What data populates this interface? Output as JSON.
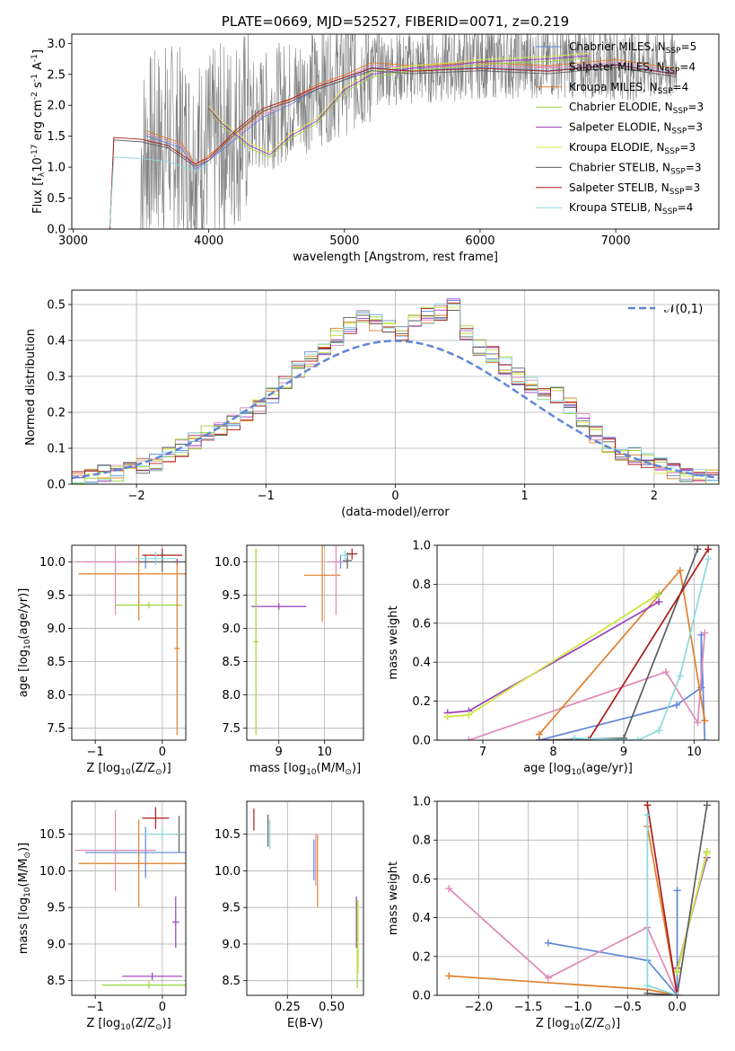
{
  "chart_data": [
    {
      "id": "spectrum",
      "type": "line",
      "title": "PLATE=0669, MJD=52527, FIBERID=0071, z=0.219",
      "xlabel": "wavelength [Angstrom, rest frame]",
      "ylabel": "Flux [f$_\\lambda$10$^{-17}$ erg cm$^{-2}$ s$^{-1}$ A$^{-1}$]",
      "xlim": [
        2990,
        7760
      ],
      "ylim": [
        0,
        3.15
      ],
      "xticks": [
        3000,
        4000,
        5000,
        6000,
        7000
      ],
      "yticks": [
        0.0,
        0.5,
        1.0,
        1.5,
        2.0,
        2.5,
        3.0
      ],
      "grid": false,
      "legend": "upper right",
      "legend_entries": [
        "Chabrier MILES, N$_{SSP}$=5",
        "Salpeter MILES, N$_{SSP}$=4",
        "Kroupa MILES, N$_{SSP}$=4",
        "Chabrier ELODIE, N$_{SSP}$=3",
        "Salpeter ELODIE, N$_{SSP}$=3",
        "Kroupa ELODIE, N$_{SSP}$=3",
        "Chabrier STELIB, N$_{SSP}$=3",
        "Salpeter STELIB, N$_{SSP}$=3",
        "Kroupa STELIB, N$_{SSP}$=4"
      ],
      "series": [
        {
          "model": "observed data",
          "color": "#808080",
          "x": [
            3270,
            3520,
            3700,
            3900,
            4000,
            4200,
            4500,
            4800,
            5000,
            5200,
            5500,
            5800,
            6000,
            6300,
            6600,
            6900,
            7200,
            7450
          ],
          "y": [
            0.0,
            1.2,
            1.5,
            1.2,
            1.3,
            1.6,
            2.0,
            2.3,
            2.5,
            2.6,
            2.6,
            2.65,
            2.7,
            2.7,
            2.7,
            2.7,
            2.65,
            2.6
          ]
        },
        {
          "model": "MILES",
          "x": [
            3540,
            3600,
            3800,
            3900,
            4000,
            4200,
            4400,
            4600,
            4800,
            5000,
            5200,
            5500,
            6000,
            6500,
            7000,
            7450
          ],
          "y": [
            1.55,
            1.5,
            1.35,
            1.0,
            1.15,
            1.5,
            1.85,
            2.05,
            2.3,
            2.45,
            2.65,
            2.6,
            2.65,
            2.6,
            2.7,
            2.55
          ]
        },
        {
          "model": "ELODIE",
          "x": [
            4000,
            4100,
            4300,
            4450,
            4600,
            4800,
            5000,
            5200,
            5500,
            5800,
            6000,
            6500,
            6800
          ],
          "y": [
            1.95,
            1.7,
            1.35,
            1.2,
            1.5,
            1.75,
            2.25,
            2.5,
            2.6,
            2.65,
            2.7,
            2.75,
            2.8
          ]
        },
        {
          "model": "STELIB",
          "x": [
            3270,
            3300,
            3500,
            3700,
            3900,
            4000,
            4200,
            4400,
            4600,
            4800,
            5000,
            5200,
            5500,
            6000,
            6500,
            7000,
            7450
          ],
          "y": [
            0.0,
            1.48,
            1.45,
            1.35,
            1.05,
            1.15,
            1.6,
            1.95,
            2.1,
            2.3,
            2.45,
            2.6,
            2.55,
            2.6,
            2.55,
            2.65,
            2.5
          ]
        },
        {
          "model": "STELIB Kroupa",
          "x": [
            3270,
            3300,
            3500,
            3700,
            3900,
            4000
          ],
          "y": [
            0.0,
            1.12,
            1.1,
            1.05,
            0.9,
            1.0
          ]
        }
      ]
    },
    {
      "id": "residuals",
      "type": "bar",
      "xlabel": "(data-model)/error",
      "ylabel": "Normed distribution",
      "xlim": [
        -2.5,
        2.5
      ],
      "ylim": [
        0,
        0.54
      ],
      "xticks": [
        -2,
        -1,
        0,
        1,
        2
      ],
      "yticks": [
        0.0,
        0.1,
        0.2,
        0.3,
        0.4,
        0.5
      ],
      "grid": true,
      "legend": "upper right",
      "legend_entries": [
        "$\\mathcal{N}(0,1)$"
      ],
      "bin_width": 0.1,
      "bin_start": -2.5,
      "values": [
        0.01,
        0.02,
        0.03,
        0.03,
        0.04,
        0.05,
        0.06,
        0.08,
        0.1,
        0.12,
        0.14,
        0.15,
        0.17,
        0.19,
        0.22,
        0.25,
        0.28,
        0.32,
        0.35,
        0.38,
        0.41,
        0.44,
        0.46,
        0.45,
        0.44,
        0.42,
        0.45,
        0.47,
        0.48,
        0.5,
        0.42,
        0.38,
        0.36,
        0.33,
        0.3,
        0.28,
        0.26,
        0.25,
        0.22,
        0.18,
        0.14,
        0.11,
        0.09,
        0.08,
        0.07,
        0.05,
        0.04,
        0.03,
        0.02,
        0.02
      ],
      "gaussian": {
        "mean": 0,
        "sigma": 1,
        "color": "#5f87d6"
      }
    },
    {
      "id": "age-vs-Z",
      "type": "scatter",
      "xlabel": "Z [log$_{10}$($Z/Z_\\odot$)]",
      "ylabel": "age  [log$_{10}$($age/yr$)]",
      "xlim": [
        -1.35,
        0.35
      ],
      "ylim": [
        7.32,
        10.25
      ],
      "xticks": [
        -1,
        0
      ],
      "yticks": [
        7.5,
        8.0,
        8.5,
        9.0,
        9.5,
        10.0
      ],
      "grid": true,
      "points": [
        {
          "x": -0.25,
          "y": 10.0,
          "xerr": 0.9,
          "yerr": 0.1,
          "color": "#5f87d6"
        },
        {
          "x": 0.22,
          "y": 10.0,
          "xerr": 0.05,
          "yerr": 0.05,
          "color": "#9a3dbd"
        },
        {
          "x": -0.35,
          "y": 9.82,
          "xerr": 0.9,
          "yerr": 0.7,
          "color": "#e07f2a"
        },
        {
          "x": -0.7,
          "y": 10.0,
          "xerr": 0.6,
          "yerr": 0.8,
          "color": "#e089b9"
        },
        {
          "x": 0.0,
          "y": 10.1,
          "xerr": 0.3,
          "yerr": 0.1,
          "color": "#b01a1a"
        },
        {
          "x": -0.2,
          "y": 9.35,
          "xerr": 0.5,
          "yerr": 0.05,
          "color": "#9ad43a"
        },
        {
          "x": 0.22,
          "y": 8.7,
          "xerr": 0.04,
          "yerr": 1.3,
          "color": "#e07f2a"
        },
        {
          "x": 0.0,
          "y": 10.0,
          "xerr": 0.35,
          "yerr": 0.15,
          "color": "#5e5e5e"
        },
        {
          "x": -0.1,
          "y": 10.05,
          "xerr": 0.3,
          "yerr": 0.1,
          "color": "#8bd9de"
        }
      ]
    },
    {
      "id": "age-vs-mass",
      "type": "scatter",
      "xlabel": "mass [log$_{10}$($M/M_\\odot$)]",
      "ylabel": "",
      "xlim": [
        8.3,
        10.85
      ],
      "ylim": [
        7.32,
        10.25
      ],
      "xticks": [
        9,
        10
      ],
      "yticks": [
        7.5,
        8.0,
        8.5,
        9.0,
        9.5,
        10.0
      ],
      "grid": true,
      "points": [
        {
          "x": 10.35,
          "y": 10.0,
          "xerr": 0.15,
          "yerr": 0.1,
          "color": "#5f87d6"
        },
        {
          "x": 9.0,
          "y": 9.33,
          "xerr": 0.6,
          "yerr": 0.05,
          "color": "#9a3dbd"
        },
        {
          "x": 9.95,
          "y": 9.8,
          "xerr": 0.4,
          "yerr": 0.7,
          "color": "#e07f2a"
        },
        {
          "x": 10.25,
          "y": 10.0,
          "xerr": 0.2,
          "yerr": 0.8,
          "color": "#e089b9"
        },
        {
          "x": 10.6,
          "y": 10.12,
          "xerr": 0.12,
          "yerr": 0.08,
          "color": "#b01a1a"
        },
        {
          "x": 8.5,
          "y": 8.8,
          "xerr": 0.05,
          "yerr": 1.4,
          "color": "#9ad43a"
        },
        {
          "x": 10.5,
          "y": 10.02,
          "xerr": 0.1,
          "yerr": 0.12,
          "color": "#5e5e5e"
        },
        {
          "x": 10.45,
          "y": 10.1,
          "xerr": 0.12,
          "yerr": 0.08,
          "color": "#8bd9de"
        }
      ]
    },
    {
      "id": "mass-weight-vs-age",
      "type": "line",
      "xlabel": "age  [log$_{10}$($age/yr$)]",
      "ylabel": "mass weight",
      "xlim": [
        6.35,
        10.35
      ],
      "ylim": [
        0,
        1.0
      ],
      "xticks": [
        7,
        8,
        9,
        10
      ],
      "yticks": [
        0.0,
        0.2,
        0.4,
        0.6,
        0.8,
        1.0
      ],
      "grid": true,
      "series": [
        {
          "model": "Chabrier MILES",
          "color": "#5f87d6",
          "x": [
            7.8,
            9.75,
            10.1,
            10.1,
            10.15
          ],
          "y": [
            0.0,
            0.18,
            0.27,
            0.54,
            0.0
          ]
        },
        {
          "model": "Salpeter MILES",
          "color": "#e089b9",
          "x": [
            6.8,
            9.6,
            10.05,
            10.15
          ],
          "y": [
            0.0,
            0.35,
            0.09,
            0.55
          ]
        },
        {
          "model": "Kroupa MILES",
          "color": "#e07f2a",
          "x": [
            7.8,
            9.8,
            10.15
          ],
          "y": [
            0.03,
            0.87,
            0.1
          ]
        },
        {
          "model": "Chabrier ELODIE",
          "color": "#9ad43a",
          "x": [
            6.5,
            6.8,
            9.5
          ],
          "y": [
            0.12,
            0.13,
            0.75
          ]
        },
        {
          "model": "Salpeter ELODIE",
          "color": "#9a3dbd",
          "x": [
            6.5,
            6.8,
            9.5
          ],
          "y": [
            0.14,
            0.15,
            0.71
          ]
        },
        {
          "model": "Kroupa ELODIE",
          "color": "#d6e84a",
          "x": [
            6.5,
            6.8,
            9.45
          ],
          "y": [
            0.12,
            0.13,
            0.74
          ]
        },
        {
          "model": "Chabrier STELIB",
          "color": "#5e5e5e",
          "x": [
            7.8,
            9.0,
            10.05
          ],
          "y": [
            0.0,
            0.01,
            0.98
          ]
        },
        {
          "model": "Salpeter STELIB",
          "color": "#b01a1a",
          "x": [
            8.5,
            10.2
          ],
          "y": [
            0.0,
            0.98
          ]
        },
        {
          "model": "Kroupa STELIB",
          "color": "#8bd9de",
          "x": [
            8.3,
            9.2,
            9.5,
            9.8,
            10.2
          ],
          "y": [
            0.01,
            0.0,
            0.05,
            0.33,
            0.93
          ]
        }
      ]
    },
    {
      "id": "mass-vs-Z",
      "type": "scatter",
      "xlabel": "Z [log$_{10}$($Z/Z_\\odot$)]",
      "ylabel": "mass [log$_{10}$($M/M_\\odot$)]",
      "xlim": [
        -1.35,
        0.35
      ],
      "ylim": [
        8.3,
        10.95
      ],
      "xticks": [
        -1,
        0
      ],
      "yticks": [
        8.5,
        9.0,
        9.5,
        10.0,
        10.5
      ],
      "grid": true,
      "points": [
        {
          "x": -0.25,
          "y": 10.25,
          "xerr": 0.9,
          "yerr": 0.35,
          "color": "#5f87d6"
        },
        {
          "x": -0.15,
          "y": 8.56,
          "xerr": 0.45,
          "yerr": 0.05,
          "color": "#9a3dbd"
        },
        {
          "x": -0.35,
          "y": 10.1,
          "xerr": 0.9,
          "yerr": 0.6,
          "color": "#e07f2a"
        },
        {
          "x": -0.7,
          "y": 10.28,
          "xerr": 0.6,
          "yerr": 0.55,
          "color": "#e089b9"
        },
        {
          "x": -0.1,
          "y": 10.72,
          "xerr": 0.2,
          "yerr": 0.15,
          "color": "#b01a1a"
        },
        {
          "x": -0.2,
          "y": 8.44,
          "xerr": 0.7,
          "yerr": 0.05,
          "color": "#9ad43a"
        },
        {
          "x": 0.2,
          "y": 9.3,
          "xerr": 0.05,
          "yerr": 0.35,
          "color": "#9a3dbd"
        },
        {
          "x": 0.25,
          "y": 10.5,
          "xerr": 0.05,
          "yerr": 0.25,
          "color": "#5e5e5e"
        },
        {
          "x": 0.0,
          "y": 10.5,
          "xerr": 0.3,
          "yerr": 0.1,
          "color": "#8bd9de"
        }
      ]
    },
    {
      "id": "mass-vs-EBV",
      "type": "scatter",
      "xlabel": "E(B-V)",
      "ylabel": "",
      "xlim": [
        0.02,
        0.68
      ],
      "ylim": [
        8.3,
        10.95
      ],
      "xticks": [
        0.25,
        0.5
      ],
      "yticks": [
        8.5,
        9.0,
        9.5,
        10.0,
        10.5
      ],
      "grid": true,
      "points": [
        {
          "x": 0.06,
          "y": 10.7,
          "xerr": 0.0,
          "yerr": 0.15,
          "color": "#b01a1a"
        },
        {
          "x": 0.14,
          "y": 10.55,
          "xerr": 0.0,
          "yerr": 0.22,
          "color": "#5e5e5e"
        },
        {
          "x": 0.15,
          "y": 10.5,
          "xerr": 0.0,
          "yerr": 0.2,
          "color": "#8bd9de"
        },
        {
          "x": 0.4,
          "y": 10.15,
          "xerr": 0.0,
          "yerr": 0.28,
          "color": "#5f87d6"
        },
        {
          "x": 0.41,
          "y": 10.15,
          "xerr": 0.0,
          "yerr": 0.35,
          "color": "#e089b9"
        },
        {
          "x": 0.42,
          "y": 10.0,
          "xerr": 0.0,
          "yerr": 0.5,
          "color": "#e07f2a"
        },
        {
          "x": 0.64,
          "y": 9.3,
          "xerr": 0.0,
          "yerr": 0.35,
          "color": "#9a3dbd"
        },
        {
          "x": 0.645,
          "y": 9.0,
          "xerr": 0.0,
          "yerr": 0.6,
          "color": "#9ad43a"
        },
        {
          "x": 0.65,
          "y": 9.1,
          "xerr": 0.0,
          "yerr": 0.5,
          "color": "#d6e84a"
        }
      ]
    },
    {
      "id": "mass-weight-vs-Z",
      "type": "line",
      "xlabel": "Z [log$_{10}$($Z/Z_\\odot$)]",
      "ylabel": "mass weight",
      "xlim": [
        -2.42,
        0.42
      ],
      "ylim": [
        0,
        1.0
      ],
      "xticks": [
        -2.0,
        -1.5,
        -1.0,
        -0.5,
        0.0
      ],
      "yticks": [
        0.0,
        0.2,
        0.4,
        0.6,
        0.8,
        1.0
      ],
      "grid": true,
      "series": [
        {
          "model": "Chabrier MILES",
          "color": "#5f87d6",
          "x": [
            -1.3,
            -0.3,
            0.0,
            0.0
          ],
          "y": [
            0.27,
            0.18,
            0.0,
            0.54
          ]
        },
        {
          "model": "Salpeter MILES",
          "color": "#e089b9",
          "x": [
            -2.3,
            -1.3,
            -0.3,
            0.0
          ],
          "y": [
            0.55,
            0.09,
            0.35,
            0.0
          ]
        },
        {
          "model": "Kroupa MILES",
          "color": "#e07f2a",
          "x": [
            -2.3,
            -0.3,
            0.0,
            -0.3
          ],
          "y": [
            0.1,
            0.03,
            0.0,
            0.87
          ]
        },
        {
          "model": "Chabrier ELODIE",
          "color": "#9ad43a",
          "x": [
            0.0,
            0.3
          ],
          "y": [
            0.12,
            0.74
          ]
        },
        {
          "model": "Salpeter ELODIE",
          "color": "#9a3dbd",
          "x": [
            0.0,
            0.3
          ],
          "y": [
            0.14,
            0.71
          ]
        },
        {
          "model": "Kroupa ELODIE",
          "color": "#d6e84a",
          "x": [
            0.0,
            0.3
          ],
          "y": [
            0.13,
            0.73
          ]
        },
        {
          "model": "Chabrier STELIB",
          "color": "#5e5e5e",
          "x": [
            -0.3,
            0.0,
            0.3
          ],
          "y": [
            0.01,
            0.0,
            0.98
          ]
        },
        {
          "model": "Salpeter STELIB",
          "color": "#b01a1a",
          "x": [
            -0.3,
            0.0
          ],
          "y": [
            0.98,
            0.0
          ]
        },
        {
          "model": "Kroupa STELIB",
          "color": "#8bd9de",
          "x": [
            -0.3,
            -0.3,
            0.0
          ],
          "y": [
            0.93,
            0.05,
            0.0
          ]
        }
      ]
    }
  ]
}
